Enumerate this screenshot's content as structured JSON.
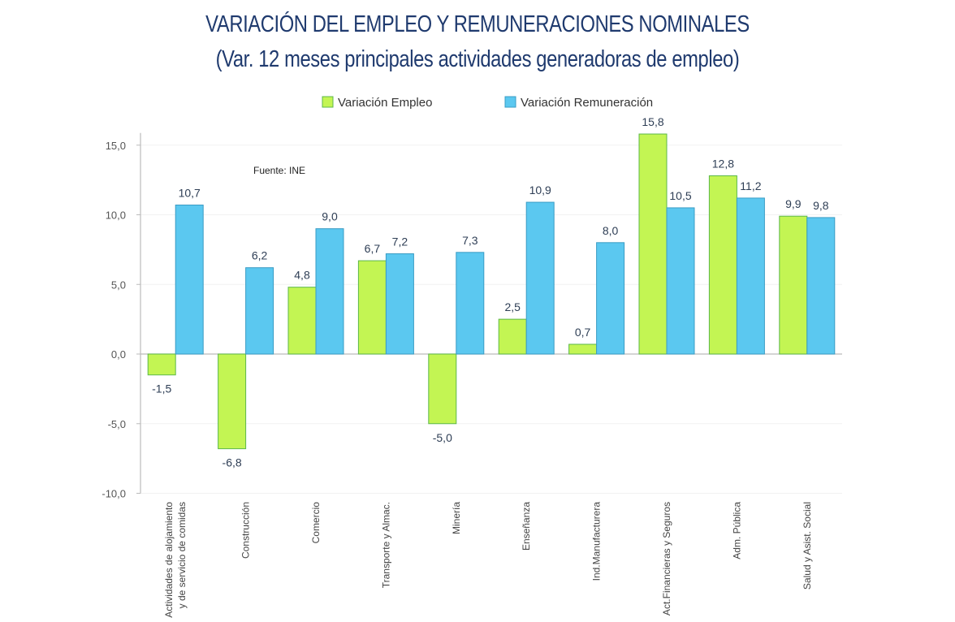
{
  "chart_data": {
    "type": "bar",
    "title": "VARIACIÓN DEL EMPLEO Y REMUNERACIONES NOMINALES",
    "subtitle": "(Var. 12 meses principales actividades generadoras de empleo)",
    "annotation": "Fuente: INE",
    "xlabel": "",
    "ylabel": "",
    "ylim": [
      -10,
      15
    ],
    "yticks": [
      -10,
      -5,
      0,
      5,
      10,
      15
    ],
    "ytick_labels": [
      "-10,0",
      "-5,0",
      "0,0",
      "5,0",
      "10,0",
      "15,0"
    ],
    "grid": true,
    "legend_position": "top-center",
    "categories": [
      [
        "Actividades de alojamiento",
        "y de servicio de comidas"
      ],
      [
        "Construcción"
      ],
      [
        "Comercio"
      ],
      [
        "Transporte y Almac."
      ],
      [
        "Minería"
      ],
      [
        "Enseñanza"
      ],
      [
        "Ind.Manufacturera"
      ],
      [
        "Act.Financieras y Seguros"
      ],
      [
        "Adm. Pública"
      ],
      [
        "Salud y Asist. Social"
      ]
    ],
    "series": [
      {
        "name": "Variación Empleo",
        "color": "#c3f553",
        "border": "#5cb84a",
        "values": [
          -1.5,
          -6.8,
          4.8,
          6.7,
          -5.0,
          2.5,
          0.7,
          15.8,
          12.8,
          9.9
        ],
        "labels": [
          "-1,5",
          "-6,8",
          "4,8",
          "6,7",
          "-5,0",
          "2,5",
          "0,7",
          "15,8",
          "12,8",
          "9,9"
        ]
      },
      {
        "name": "Variación Remuneración",
        "color": "#5bc8f0",
        "border": "#3a9cc4",
        "values": [
          10.7,
          6.2,
          9.0,
          7.2,
          7.3,
          10.9,
          8.0,
          10.5,
          11.2,
          9.8
        ],
        "labels": [
          "10,7",
          "6,2",
          "9,0",
          "7,2",
          "7,3",
          "10,9",
          "8,0",
          "10,5",
          "11,2",
          "9,8"
        ]
      }
    ]
  }
}
